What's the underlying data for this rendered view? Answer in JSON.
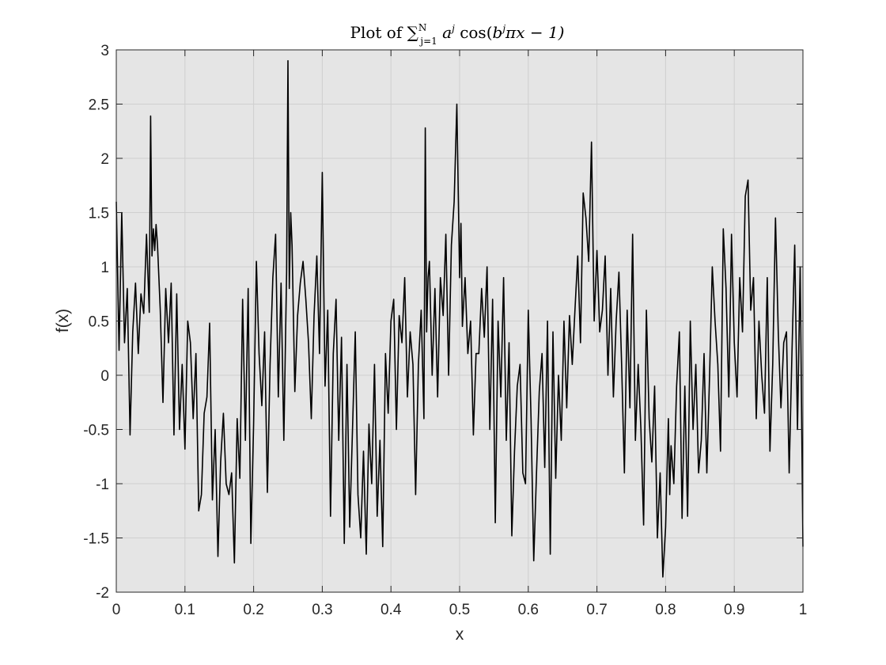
{
  "chart_data": {
    "type": "line",
    "title": {
      "prefix": "Plot of ",
      "sum_symbol": "∑",
      "sum_upper": "N",
      "sum_lower": "j=1",
      "term_base": "a",
      "term_exp": "j",
      "func_open": "cos(",
      "inner_base": "b",
      "inner_exp": "j",
      "inner_rest": "πx − 1)"
    },
    "xlabel": "x",
    "ylabel": "f(x)",
    "xlim": [
      0,
      1
    ],
    "ylim": [
      -2,
      3
    ],
    "xticks": [
      0,
      0.1,
      0.2,
      0.3,
      0.4,
      0.5,
      0.6,
      0.7,
      0.8,
      0.9,
      1
    ],
    "xtick_labels": [
      "0",
      "0.1",
      "0.2",
      "0.3",
      "0.4",
      "0.5",
      "0.6",
      "0.7",
      "0.8",
      "0.9",
      "1"
    ],
    "yticks": [
      -2,
      -1.5,
      -1,
      -0.5,
      0,
      0.5,
      1,
      1.5,
      2,
      2.5,
      3
    ],
    "ytick_labels": [
      "-2",
      "-1.5",
      "-1",
      "-0.5",
      "0",
      "0.5",
      "1",
      "1.5",
      "2",
      "2.5",
      "3"
    ],
    "grid": true,
    "colors": {
      "line": "#000000",
      "axes_background": "#e5e5e5",
      "grid": "#cfcfcf",
      "axis": "#262626"
    },
    "series": [
      {
        "x": [
          0.0,
          0.004,
          0.008,
          0.012,
          0.016,
          0.02,
          0.024,
          0.028,
          0.032,
          0.036,
          0.04,
          0.044,
          0.048,
          0.05,
          0.052,
          0.054,
          0.056,
          0.058,
          0.06,
          0.064,
          0.068,
          0.072,
          0.076,
          0.08,
          0.084,
          0.088,
          0.092,
          0.096,
          0.1,
          0.104,
          0.108,
          0.112,
          0.116,
          0.12,
          0.124,
          0.128,
          0.132,
          0.136,
          0.14,
          0.144,
          0.148,
          0.152,
          0.156,
          0.16,
          0.164,
          0.168,
          0.172,
          0.176,
          0.18,
          0.184,
          0.188,
          0.192,
          0.196,
          0.2,
          0.204,
          0.208,
          0.212,
          0.216,
          0.22,
          0.224,
          0.228,
          0.232,
          0.236,
          0.24,
          0.244,
          0.248,
          0.25,
          0.252,
          0.254,
          0.256,
          0.26,
          0.264,
          0.268,
          0.272,
          0.276,
          0.28,
          0.284,
          0.288,
          0.292,
          0.296,
          0.3,
          0.304,
          0.308,
          0.312,
          0.316,
          0.32,
          0.324,
          0.328,
          0.332,
          0.336,
          0.34,
          0.344,
          0.348,
          0.352,
          0.356,
          0.36,
          0.364,
          0.368,
          0.372,
          0.376,
          0.38,
          0.384,
          0.388,
          0.392,
          0.396,
          0.4,
          0.404,
          0.408,
          0.412,
          0.416,
          0.42,
          0.424,
          0.428,
          0.432,
          0.436,
          0.44,
          0.444,
          0.448,
          0.45,
          0.452,
          0.454,
          0.456,
          0.46,
          0.464,
          0.468,
          0.472,
          0.476,
          0.48,
          0.484,
          0.488,
          0.492,
          0.496,
          0.5,
          0.502,
          0.504,
          0.508,
          0.512,
          0.516,
          0.52,
          0.524,
          0.528,
          0.532,
          0.536,
          0.54,
          0.544,
          0.548,
          0.552,
          0.556,
          0.56,
          0.564,
          0.568,
          0.572,
          0.576,
          0.58,
          0.584,
          0.588,
          0.592,
          0.596,
          0.6,
          0.604,
          0.608,
          0.612,
          0.616,
          0.62,
          0.624,
          0.628,
          0.632,
          0.636,
          0.64,
          0.644,
          0.648,
          0.652,
          0.656,
          0.66,
          0.664,
          0.668,
          0.672,
          0.676,
          0.68,
          0.684,
          0.688,
          0.692,
          0.696,
          0.7,
          0.702,
          0.704,
          0.708,
          0.712,
          0.716,
          0.72,
          0.724,
          0.728,
          0.732,
          0.736,
          0.74,
          0.744,
          0.748,
          0.752,
          0.756,
          0.76,
          0.764,
          0.768,
          0.772,
          0.776,
          0.78,
          0.784,
          0.788,
          0.792,
          0.796,
          0.8,
          0.804,
          0.806,
          0.808,
          0.812,
          0.816,
          0.82,
          0.824,
          0.828,
          0.832,
          0.836,
          0.84,
          0.844,
          0.848,
          0.852,
          0.856,
          0.86,
          0.864,
          0.868,
          0.872,
          0.876,
          0.88,
          0.884,
          0.888,
          0.892,
          0.896,
          0.9,
          0.904,
          0.908,
          0.912,
          0.916,
          0.92,
          0.924,
          0.928,
          0.932,
          0.936,
          0.94,
          0.944,
          0.948,
          0.952,
          0.956,
          0.96,
          0.964,
          0.968,
          0.972,
          0.976,
          0.98,
          0.984,
          0.988,
          0.992,
          0.996,
          1.0
        ],
        "y": [
          1.6,
          0.23,
          1.5,
          0.3,
          0.8,
          -0.55,
          0.4,
          0.85,
          0.2,
          0.75,
          0.57,
          1.3,
          0.58,
          2.39,
          1.1,
          1.35,
          1.15,
          1.39,
          1.2,
          0.6,
          -0.25,
          0.8,
          0.3,
          0.85,
          -0.55,
          0.75,
          -0.5,
          0.1,
          -0.68,
          0.5,
          0.3,
          -0.4,
          0.2,
          -1.25,
          -1.1,
          -0.35,
          -0.2,
          0.48,
          -1.15,
          -0.5,
          -1.67,
          -0.8,
          -0.35,
          -1.0,
          -1.1,
          -0.9,
          -1.73,
          -0.4,
          -0.95,
          0.7,
          -0.6,
          0.8,
          -1.55,
          -0.45,
          1.05,
          0.2,
          -0.28,
          0.4,
          -1.08,
          0.1,
          0.9,
          1.3,
          -0.2,
          0.85,
          -0.6,
          0.95,
          2.9,
          0.8,
          1.5,
          1.2,
          -0.15,
          0.55,
          0.85,
          1.05,
          0.7,
          0.3,
          -0.4,
          0.55,
          1.1,
          0.2,
          1.87,
          -0.1,
          0.6,
          -1.3,
          0.2,
          0.7,
          -0.6,
          0.35,
          -1.55,
          0.1,
          -1.4,
          -0.5,
          0.4,
          -1.1,
          -1.5,
          -0.7,
          -1.65,
          -0.45,
          -1.0,
          0.1,
          -1.3,
          -0.6,
          -1.58,
          0.2,
          -0.35,
          0.5,
          0.7,
          -0.5,
          0.55,
          0.3,
          0.9,
          -0.2,
          0.4,
          0.1,
          -1.1,
          0.1,
          0.6,
          -0.4,
          2.28,
          0.4,
          0.9,
          1.05,
          0.0,
          0.8,
          -0.2,
          0.9,
          0.55,
          1.3,
          0.0,
          1.2,
          1.6,
          2.5,
          0.9,
          1.4,
          0.45,
          0.9,
          0.2,
          0.5,
          -0.55,
          0.2,
          0.2,
          0.8,
          0.35,
          1.0,
          -0.5,
          0.7,
          -1.36,
          0.5,
          -0.2,
          0.9,
          -0.6,
          0.3,
          -1.48,
          -0.7,
          -0.1,
          0.1,
          -0.9,
          -1.0,
          0.6,
          -0.4,
          -1.71,
          -0.9,
          -0.15,
          0.2,
          -0.85,
          0.5,
          -1.65,
          0.4,
          -0.95,
          0.0,
          -0.6,
          0.5,
          -0.3,
          0.55,
          0.1,
          0.6,
          1.1,
          0.3,
          1.68,
          1.45,
          1.05,
          2.15,
          0.5,
          1.15,
          0.8,
          0.4,
          0.6,
          1.1,
          0.0,
          0.8,
          -0.2,
          0.5,
          0.95,
          0.1,
          -0.9,
          0.6,
          -0.3,
          1.3,
          -0.6,
          0.1,
          -0.5,
          -1.38,
          0.6,
          -0.4,
          -0.8,
          -0.1,
          -1.5,
          -0.9,
          -1.86,
          -1.4,
          -0.4,
          -1.1,
          -0.65,
          -1.0,
          -0.1,
          0.4,
          -1.32,
          -0.1,
          -1.3,
          0.5,
          -0.5,
          0.1,
          -0.9,
          -0.6,
          0.2,
          -0.9,
          0.0,
          1.0,
          0.5,
          0.1,
          -0.7,
          1.35,
          0.8,
          -0.2,
          1.3,
          0.3,
          -0.2,
          0.9,
          0.4,
          1.65,
          1.8,
          0.6,
          0.9,
          -0.4,
          0.5,
          0.0,
          -0.35,
          0.9,
          -0.7,
          0.1,
          1.45,
          0.4,
          -0.3,
          0.3,
          0.4,
          -0.9,
          0.2,
          1.2,
          -0.5,
          1.0,
          -1.58
        ]
      }
    ]
  }
}
